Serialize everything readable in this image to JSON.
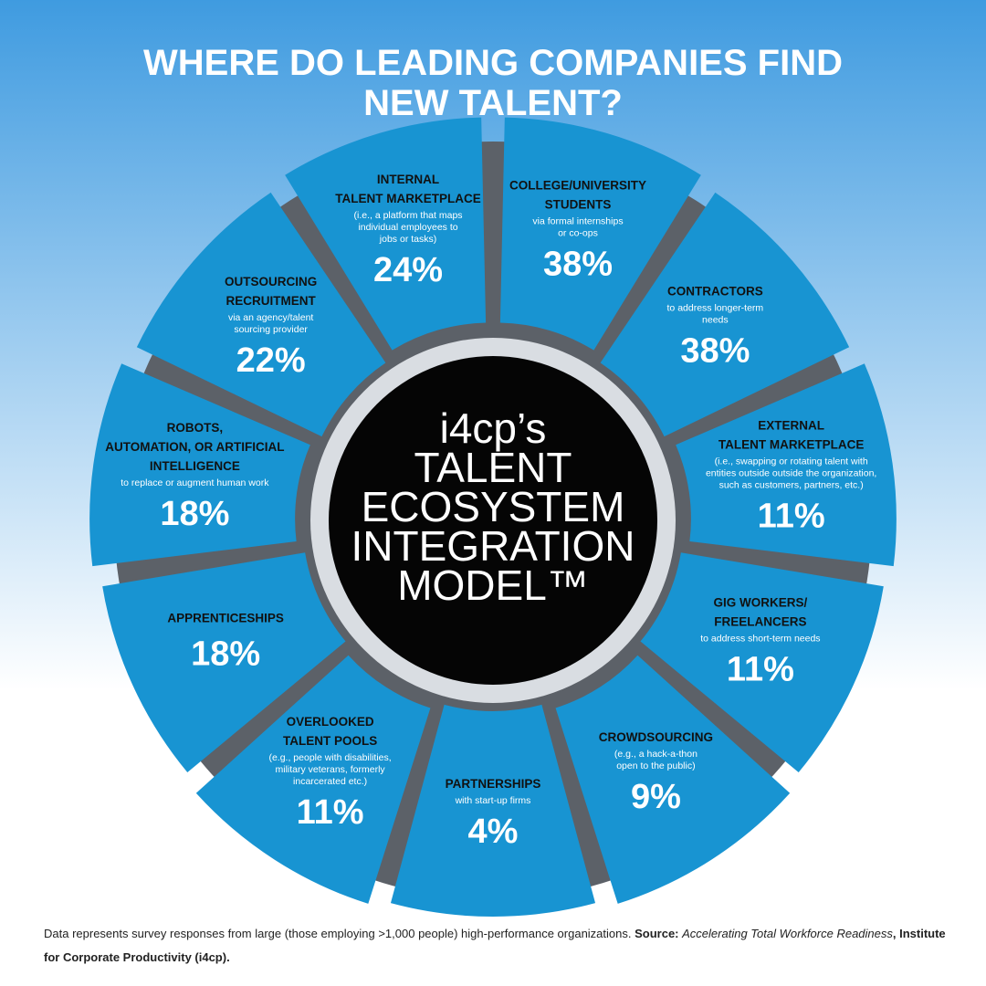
{
  "header": {
    "title": [
      "WHERE DO LEADING COMPANIES FIND",
      "NEW TALENT?"
    ]
  },
  "center": {
    "lines": [
      "i4cp’s",
      "TALENT",
      "ECOSYSTEM",
      "INTEGRATION",
      "MODEL™"
    ]
  },
  "segments": [
    {
      "title": [
        "COLLEGE/UNIVERSITY",
        "STUDENTS"
      ],
      "description": [
        "via formal internships",
        "or co-ops"
      ],
      "value": "38%"
    },
    {
      "title": [
        "CONTRACTORS"
      ],
      "description": [
        "to address longer-term",
        "needs"
      ],
      "value": "38%"
    },
    {
      "title": [
        "EXTERNAL",
        "TALENT MARKETPLACE"
      ],
      "description": [
        "(i.e., swapping or rotating talent with",
        "entities outside outside the organization,",
        "such as customers, partners, etc.)"
      ],
      "value": "11%"
    },
    {
      "title": [
        "GIG WORKERS/",
        "FREELANCERS"
      ],
      "description": [
        "to address short-term needs"
      ],
      "value": "11%"
    },
    {
      "title": [
        "CROWDSOURCING"
      ],
      "description": [
        "(e.g.,  a  hack-a-thon",
        "open to the public)"
      ],
      "value": "9%"
    },
    {
      "title": [
        "PARTNERSHIPS"
      ],
      "description": [
        "with start-up firms"
      ],
      "value": "4%"
    },
    {
      "title": [
        "OVERLOOKED",
        "TALENT POOLS"
      ],
      "description": [
        "(e.g., people with disabilities,",
        "military veterans, formerly",
        "incarcerated etc.)"
      ],
      "value": "11%"
    },
    {
      "title": [
        "APPRENTICESHIPS"
      ],
      "description": [],
      "value": "18%"
    },
    {
      "title": [
        "ROBOTS,",
        "AUTOMATION, OR ARTIFICIAL",
        "INTELLIGENCE"
      ],
      "description": [
        "to replace or augment human work"
      ],
      "value": "18%"
    },
    {
      "title": [
        "OUTSOURCING",
        "RECRUITMENT"
      ],
      "description": [
        "via an agency/talent",
        "sourcing provider"
      ],
      "value": "22%"
    },
    {
      "title": [
        "INTERNAL",
        "TALENT MARKETPLACE"
      ],
      "description": [
        "(i.e., a platform that maps",
        "individual employees to",
        "jobs or tasks)"
      ],
      "value": "24%"
    }
  ],
  "footer": {
    "text": "Data represents survey responses from large (those employing >1,000 people) high-performance organizations. ",
    "source_label": "Source:",
    "source_title": "Accelerating Total Workforce Readiness",
    "source_org": ", Institute for Corporate Productivity (i4cp)."
  }
}
